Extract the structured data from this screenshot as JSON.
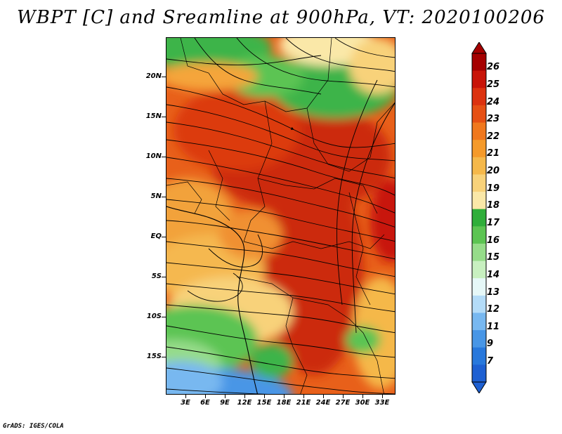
{
  "title": "WBPT [C] and Sreamline at 900hPa, VT: 2020100206",
  "footer": "GrADS: IGES/COLA",
  "latitude_labels": [
    "20N",
    "15N",
    "10N",
    "5N",
    "EQ",
    "5S",
    "10S",
    "15S"
  ],
  "longitude_labels": [
    "3E",
    "6E",
    "9E",
    "12E",
    "15E",
    "18E",
    "21E",
    "24E",
    "27E",
    "30E",
    "33E"
  ],
  "colorbar": {
    "labels": [
      "26",
      "25",
      "24",
      "23",
      "22",
      "21",
      "20",
      "19",
      "18",
      "17",
      "16",
      "15",
      "14",
      "13",
      "12",
      "11",
      "9",
      "7"
    ],
    "colors": [
      "#a50000",
      "#c81408",
      "#dc320f",
      "#e65014",
      "#f0781e",
      "#f59a2a",
      "#f5b84a",
      "#f8d27a",
      "#fae8a8",
      "#2fae3a",
      "#5cc452",
      "#96dc8a",
      "#c8f0c0",
      "#e6f8f8",
      "#b4dcf8",
      "#78b8f0",
      "#4896e6",
      "#2878dc",
      "#1e60d2"
    ]
  },
  "map_regions": [
    {
      "name": "sahel-green",
      "color": "#3cb44a"
    },
    {
      "name": "warm-core",
      "color": "#dc380e"
    },
    {
      "name": "gulf-of-guinea",
      "color": "#f5a53a"
    },
    {
      "name": "atlantic-south",
      "color": "#5cc452"
    },
    {
      "name": "cold-southwest",
      "color": "#4896e6"
    }
  ]
}
